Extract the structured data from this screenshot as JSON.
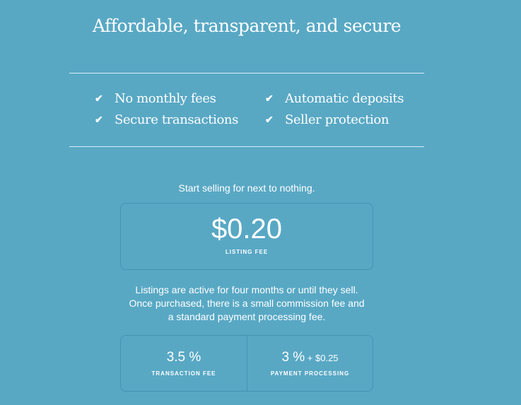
{
  "title": "Affordable, transparent, and secure",
  "features": [
    {
      "icon": "check-icon",
      "label": "No monthly fees"
    },
    {
      "icon": "check-icon",
      "label": "Secure transactions"
    },
    {
      "icon": "check-icon",
      "label": "Automatic deposits"
    },
    {
      "icon": "check-icon",
      "label": "Seller protection"
    }
  ],
  "tagline": "Start selling for next to nothing.",
  "listing": {
    "price": "$0.20",
    "label": "LISTING FEE"
  },
  "description": [
    "Listings are active for four months or until they sell.",
    "Once purchased, there is a small commission fee and",
    "a standard payment processing fee."
  ],
  "fees": [
    {
      "value": "3.5 %",
      "extra": "",
      "label": "TRANSACTION FEE"
    },
    {
      "value": "3 %",
      "extra": " + $0.25",
      "label": "PAYMENT PROCESSING"
    }
  ],
  "colors": {
    "background": "#58a8c4",
    "border": "#4593b1"
  }
}
